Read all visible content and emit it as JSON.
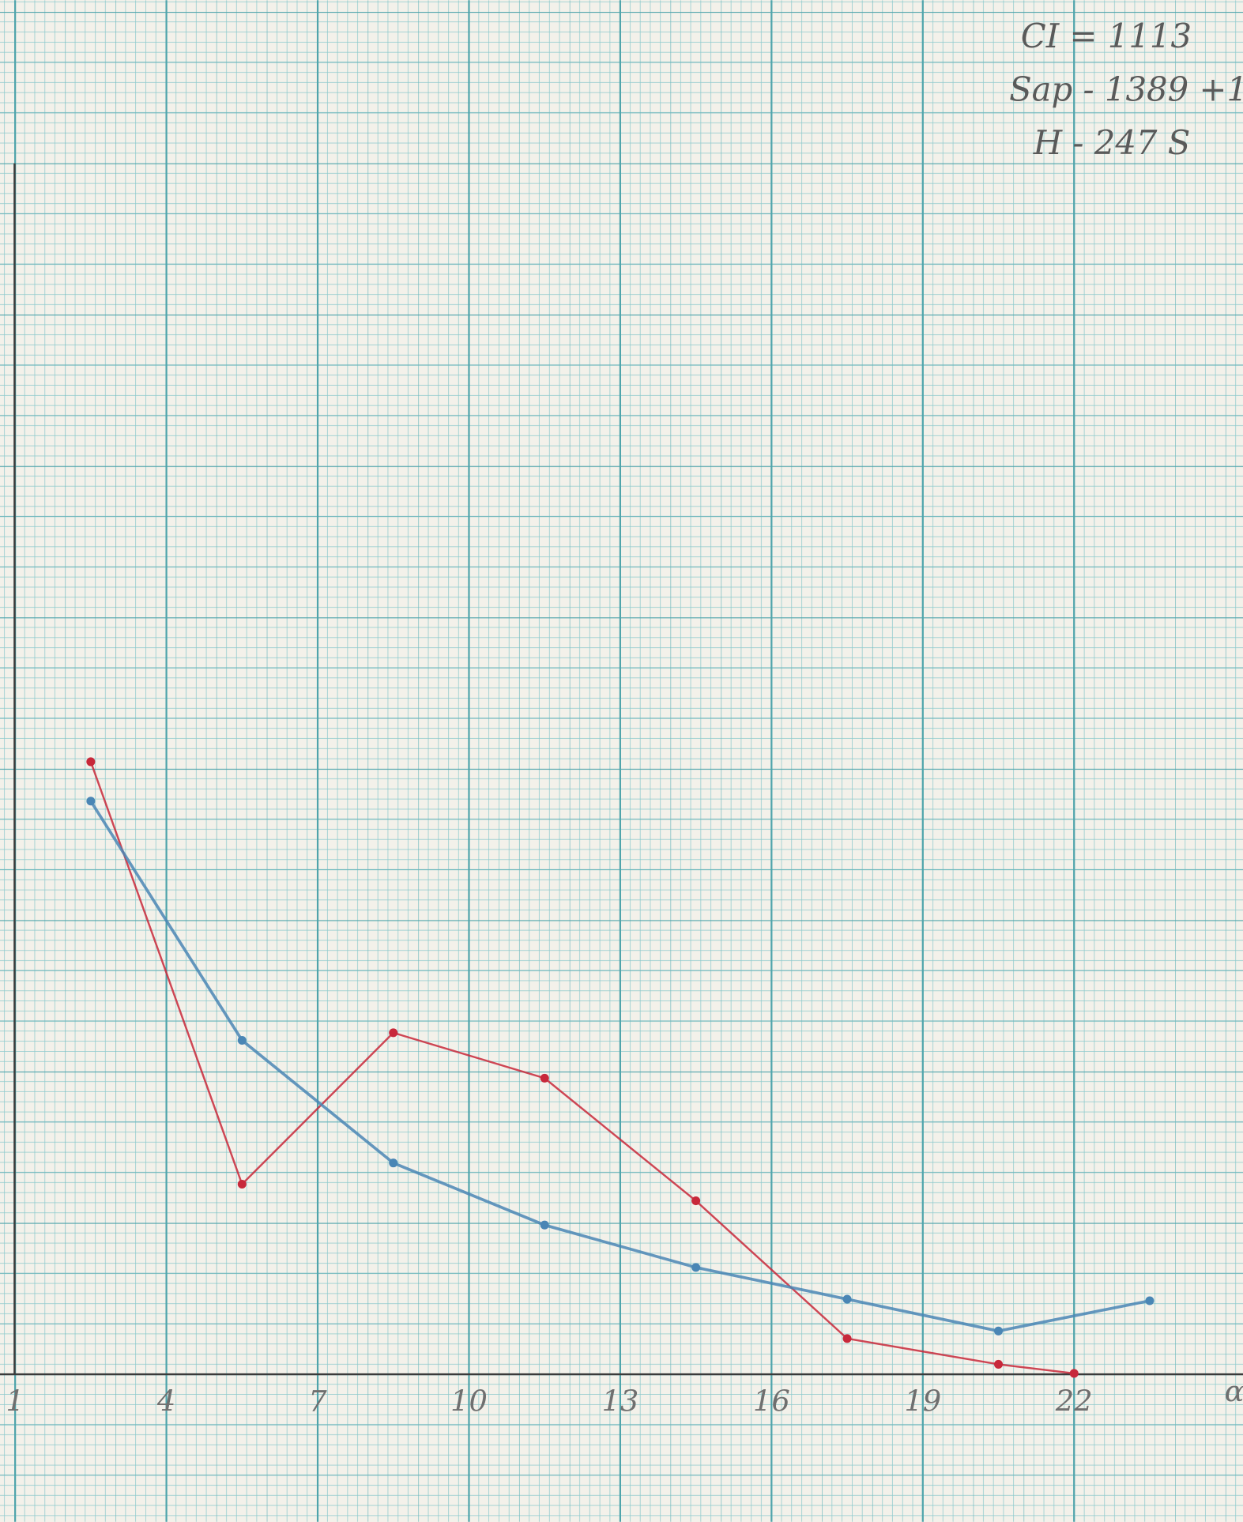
{
  "chart_data": {
    "type": "line",
    "annotations": [
      "CI = 1113",
      "Sap - 1389 +1",
      "H - 247 S"
    ],
    "x_label": "α",
    "xlim": [
      0.7,
      25.35
    ],
    "ylim": [
      -9.7,
      90.8
    ],
    "xticks": [
      1,
      4,
      7,
      10,
      13,
      16,
      19,
      22
    ],
    "grid": true,
    "series": [
      {
        "color": "#c8283a",
        "x": [
          2.5,
          5.5,
          8.5,
          11.5,
          14.5,
          17.5,
          20.5,
          22
        ],
        "values": [
          40.5,
          12.6,
          22.6,
          19.6,
          11.5,
          2.4,
          0.7,
          0.1
        ]
      },
      {
        "color": "#4a86b5",
        "x": [
          2.5,
          5.5,
          8.5,
          11.5,
          14.5,
          17.5,
          20.5,
          23.5
        ],
        "values": [
          37.9,
          22.1,
          14.0,
          9.9,
          7.1,
          5.0,
          2.9,
          4.9
        ]
      }
    ]
  }
}
